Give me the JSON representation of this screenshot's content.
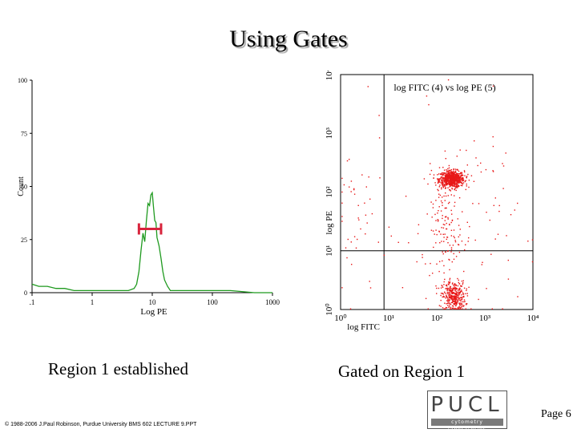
{
  "slide": {
    "title": "Using Gates",
    "caption_left": "Region 1 established",
    "caption_right": "Gated on Region 1",
    "footer": "© 1988-2006 J.Paul Robinson, Purdue University BMS 602 LECTURE 9.PPT",
    "page": "Page 6"
  },
  "logo": {
    "text": "PUCL",
    "subtitle": "cytometry laboratories"
  },
  "colors": {
    "histogram": "#1f9a1f",
    "gate_marker": "#d8243c",
    "dots": "#e81818"
  },
  "chart_data": [
    {
      "type": "line",
      "title": "",
      "xlabel": "Log PE",
      "ylabel": "Count",
      "x_scale": "log",
      "xlim": [
        0.1,
        1000
      ],
      "ylim": [
        0,
        100
      ],
      "x_ticks": [
        ".1",
        "1",
        "10",
        "100",
        "1000"
      ],
      "y_ticks": [
        "0",
        "25",
        "50",
        "75",
        "100"
      ],
      "series": [
        {
          "x": [
            0.1,
            0.13,
            0.18,
            0.25,
            0.35,
            0.5,
            0.7,
            1,
            1.5,
            2,
            3,
            4,
            5,
            5.5,
            6,
            6.5,
            7,
            7.5,
            8,
            8.5,
            9,
            9.5,
            10,
            10.5,
            11,
            11.5,
            12,
            13,
            14,
            15,
            16,
            18,
            20,
            30,
            50,
            100,
            200,
            500,
            1000
          ],
          "y": [
            4,
            3,
            3,
            2,
            2,
            1,
            1,
            1,
            1,
            1,
            1,
            1,
            2,
            4,
            10,
            20,
            28,
            24,
            34,
            42,
            41,
            46,
            47,
            40,
            34,
            33,
            26,
            22,
            16,
            10,
            6,
            3,
            1,
            1,
            1,
            1,
            1,
            0,
            0
          ]
        }
      ],
      "gate": {
        "name": "Region 1",
        "from": 6,
        "to": 14,
        "level": 30
      }
    },
    {
      "type": "scatter",
      "title": "log FITC (4) vs log PE (5)",
      "xlabel": "log FITC",
      "ylabel": "log PE",
      "x_scale": "log",
      "y_scale": "log",
      "xlim": [
        1,
        10000
      ],
      "ylim": [
        1,
        10000
      ],
      "x_ticks": [
        "10⁰",
        "10¹",
        "10²",
        "10³",
        "10⁴"
      ],
      "y_ticks": [
        "10⁰",
        "10¹",
        "10²",
        "10³",
        "10⁴"
      ],
      "quadrant_x": 8,
      "quadrant_y": 10,
      "clusters": [
        {
          "x_center": 200,
          "y_center": 170,
          "x_spread": 0.13,
          "y_spread": 0.07,
          "count": 700
        },
        {
          "x_center": 220,
          "y_center": 1.7,
          "x_spread": 0.12,
          "y_spread": 0.13,
          "count": 350
        },
        {
          "x_center": 150,
          "y_center": 25,
          "x_spread": 0.15,
          "y_spread": 0.35,
          "count": 90
        },
        {
          "x_center": 300,
          "y_center": 30,
          "x_spread": 0.6,
          "y_spread": 0.9,
          "count": 140
        },
        {
          "x_center": 2,
          "y_center": 30,
          "x_spread": 0.3,
          "y_spread": 0.8,
          "count": 45
        }
      ]
    }
  ]
}
